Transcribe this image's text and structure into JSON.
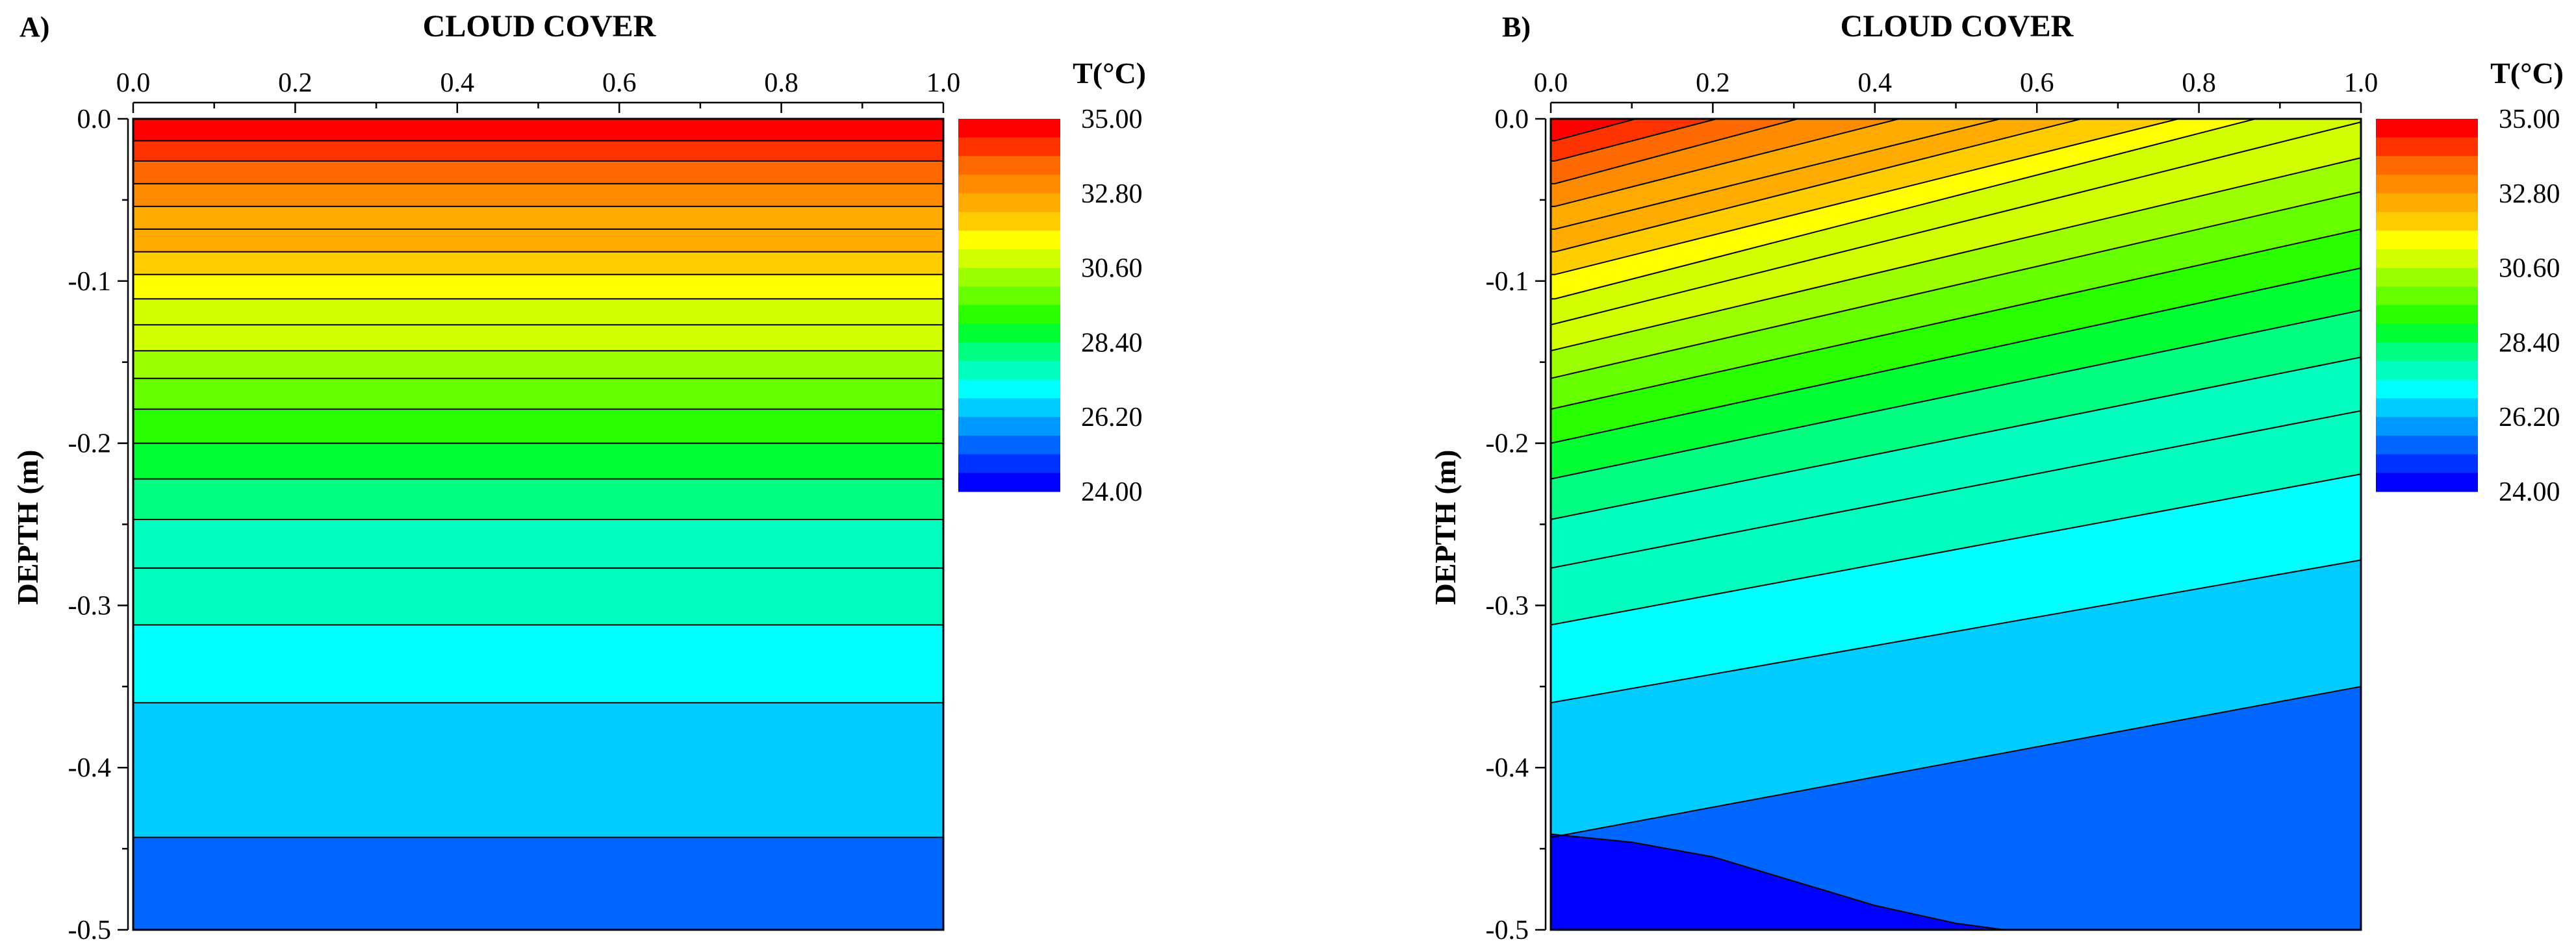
{
  "chart_data": [
    {
      "type": "contour",
      "panel_label": "A)",
      "title": "CLOUD COVER",
      "ylabel": "DEPTH (m)",
      "xlim": [
        0.0,
        1.0
      ],
      "ylim": [
        -0.5,
        0.0
      ],
      "x_ticks": [
        "0.0",
        "0.2",
        "0.4",
        "0.6",
        "0.8",
        "1.0"
      ],
      "y_ticks": [
        "0.0",
        "-0.1",
        "-0.2",
        "-0.3",
        "-0.4",
        "-0.5"
      ],
      "isotherm_depths": [
        -0.0135,
        -0.026,
        -0.04,
        -0.054,
        -0.068,
        -0.082,
        -0.096,
        -0.111,
        -0.127,
        -0.143,
        -0.16,
        -0.179,
        -0.2,
        -0.222,
        -0.247,
        -0.277,
        -0.312,
        -0.36,
        -0.443
      ],
      "band_temperatures": [
        34.7,
        34.2,
        33.7,
        33.3,
        32.8,
        32.4,
        31.9,
        31.5,
        31.0,
        30.6,
        30.1,
        29.7,
        29.2,
        28.8,
        28.3,
        27.8,
        27.4,
        26.9,
        26.4,
        25.5
      ],
      "colorbar": {
        "title": "T(°C)",
        "tick_labels": [
          "35.00",
          "32.80",
          "30.60",
          "28.40",
          "26.20",
          "24.00"
        ],
        "min": 24.0,
        "max": 35.0,
        "levels": 20
      }
    },
    {
      "type": "contour",
      "panel_label": "B)",
      "title": "CLOUD COVER",
      "ylabel": "DEPTH (m)",
      "xlim": [
        0.0,
        1.0
      ],
      "ylim": [
        -0.5,
        0.0
      ],
      "x_ticks": [
        "0.0",
        "0.2",
        "0.4",
        "0.6",
        "0.8",
        "1.0"
      ],
      "y_ticks": [
        "0.0",
        "-0.1",
        "-0.2",
        "-0.3",
        "-0.4",
        "-0.5"
      ],
      "band_temperatures": [
        34.7,
        34.2,
        33.7,
        33.3,
        32.8,
        32.4,
        31.9,
        31.5,
        31.0,
        30.6,
        30.1,
        29.7,
        29.2,
        28.8,
        28.3,
        27.8,
        27.4,
        26.9,
        26.4,
        25.5
      ],
      "isotherms": [
        {
          "x0": 0.005,
          "y0": -0.0135,
          "x1": 0.105,
          "y1": 0.0
        },
        {
          "x0": 0.005,
          "y0": -0.026,
          "x1": 0.205,
          "y1": 0.0
        },
        {
          "x0": 0.005,
          "y0": -0.04,
          "x1": 0.305,
          "y1": 0.0
        },
        {
          "x0": 0.005,
          "y0": -0.054,
          "x1": 0.43,
          "y1": 0.0
        },
        {
          "x0": 0.005,
          "y0": -0.068,
          "x1": 0.555,
          "y1": 0.0
        },
        {
          "x0": 0.005,
          "y0": -0.082,
          "x1": 0.655,
          "y1": 0.0
        },
        {
          "x0": 0.005,
          "y0": -0.096,
          "x1": 0.775,
          "y1": 0.0
        },
        {
          "x0": 0.005,
          "y0": -0.111,
          "x1": 0.87,
          "y1": 0.0
        },
        {
          "x0": 0.0,
          "y0": -0.127,
          "x1": 1.0,
          "y1": -0.002
        },
        {
          "x0": 0.0,
          "y0": -0.143,
          "x1": 1.0,
          "y1": -0.024
        },
        {
          "x0": 0.0,
          "y0": -0.16,
          "x1": 1.0,
          "y1": -0.045
        },
        {
          "x0": 0.0,
          "y0": -0.179,
          "x1": 1.0,
          "y1": -0.068
        },
        {
          "x0": 0.0,
          "y0": -0.2,
          "x1": 1.0,
          "y1": -0.092
        },
        {
          "x0": 0.0,
          "y0": -0.222,
          "x1": 1.0,
          "y1": -0.118
        },
        {
          "x0": 0.0,
          "y0": -0.247,
          "x1": 1.0,
          "y1": -0.147
        },
        {
          "x0": 0.0,
          "y0": -0.277,
          "x1": 1.0,
          "y1": -0.18
        },
        {
          "x0": 0.0,
          "y0": -0.312,
          "x1": 1.0,
          "y1": -0.219
        },
        {
          "x0": 0.0,
          "y0": -0.36,
          "x1": 1.0,
          "y1": -0.272
        },
        {
          "x0": 0.0,
          "y0": -0.443,
          "x1": 1.0,
          "y1": -0.35
        }
      ],
      "deep_contour": [
        [
          0.0,
          -0.441
        ],
        [
          0.1,
          -0.446
        ],
        [
          0.2,
          -0.455
        ],
        [
          0.3,
          -0.47
        ],
        [
          0.4,
          -0.485
        ],
        [
          0.5,
          -0.496
        ],
        [
          0.56,
          -0.5
        ]
      ],
      "colorbar": {
        "title": "T(°C)",
        "tick_labels": [
          "35.00",
          "32.80",
          "30.60",
          "28.40",
          "26.20",
          "24.00"
        ],
        "min": 24.0,
        "max": 35.0,
        "levels": 20
      }
    }
  ],
  "palette": [
    "#ff0000",
    "#ff3300",
    "#ff6a00",
    "#ff8c00",
    "#ffaa00",
    "#ffcc00",
    "#ffff00",
    "#d2ff00",
    "#9cff00",
    "#66ff00",
    "#2aff00",
    "#00ff33",
    "#00ff80",
    "#00ffbe",
    "#00ffff",
    "#00ccff",
    "#0099ff",
    "#0066ff",
    "#0033ff",
    "#0000ff"
  ]
}
